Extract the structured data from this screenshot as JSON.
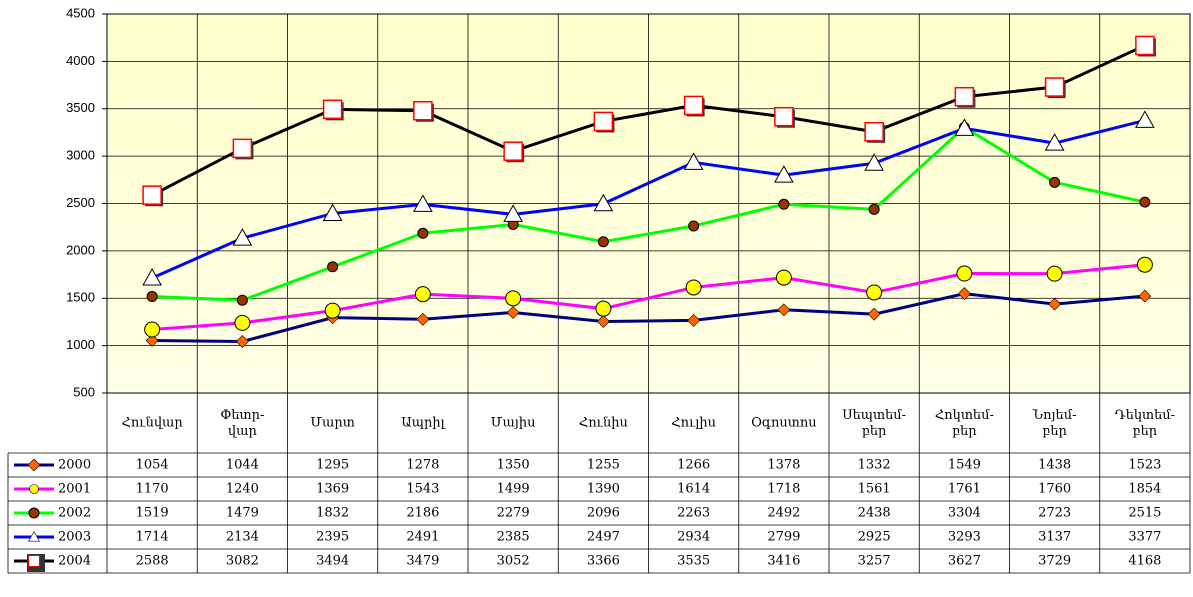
{
  "chart_data": {
    "type": "line",
    "categories": [
      "Հունվար",
      "Փետր-\nվար",
      "Մարտ",
      "Ապրիլ",
      "Մայիս",
      "Հունիս",
      "Հուլիս",
      "Օգոստոս",
      "Սեպտեմ-\nբեր",
      "Հոկտեմ-\nբեր",
      "Նոյեմ-\nբեր",
      "Դեկտեմ-\nբեր"
    ],
    "series": [
      {
        "name": "2000",
        "color": "#000080",
        "marker": "diamond",
        "marker_color": "#ff6600",
        "values": [
          1054,
          1044,
          1295,
          1278,
          1350,
          1255,
          1266,
          1378,
          1332,
          1549,
          1438,
          1523
        ]
      },
      {
        "name": "2001",
        "color": "#ff00ff",
        "marker": "circle",
        "marker_color": "#ffff00",
        "values": [
          1170,
          1240,
          1369,
          1543,
          1499,
          1390,
          1614,
          1718,
          1561,
          1761,
          1760,
          1854
        ]
      },
      {
        "name": "2002",
        "color": "#00ff00",
        "marker": "dot",
        "marker_color": "#993300",
        "values": [
          1519,
          1479,
          1832,
          2186,
          2279,
          2096,
          2263,
          2492,
          2438,
          3304,
          2723,
          2515
        ]
      },
      {
        "name": "2003",
        "color": "#0000ff",
        "marker": "triangle",
        "marker_color": "#ffffff",
        "values": [
          1714,
          2134,
          2395,
          2491,
          2385,
          2497,
          2934,
          2799,
          2925,
          3293,
          3137,
          3377
        ]
      },
      {
        "name": "2004",
        "color": "#000000",
        "marker": "square",
        "marker_color": "#ffffff",
        "values": [
          2588,
          3082,
          3494,
          3479,
          3052,
          3366,
          3535,
          3416,
          3257,
          3627,
          3729,
          4168
        ]
      }
    ],
    "ylim": [
      500,
      4500
    ],
    "yticks": [
      500,
      1000,
      1500,
      2000,
      2500,
      3000,
      3500,
      4000,
      4500
    ],
    "grid": true
  }
}
